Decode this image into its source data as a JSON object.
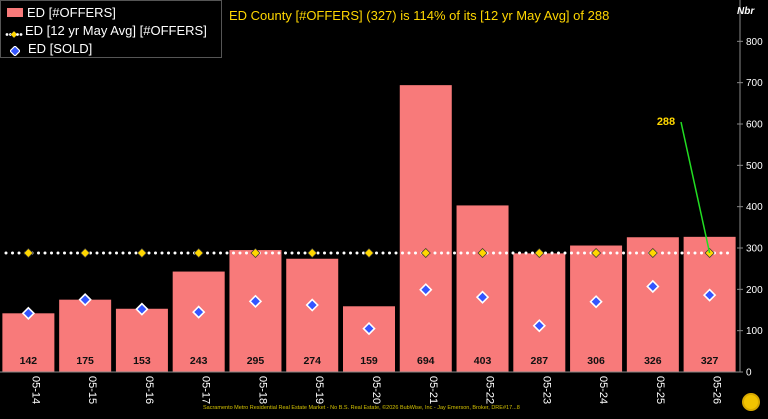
{
  "chart_data": {
    "type": "bar",
    "title": "ED County [#OFFERS] (327) is 114% of its [12 yr May Avg] of 288",
    "xlabel": "",
    "ylabel": "Nbr",
    "ylim": [
      0,
      900
    ],
    "yticks": [
      0,
      100,
      200,
      300,
      400,
      500,
      600,
      700,
      800
    ],
    "grid": false,
    "legend_position": "top-left",
    "categories": [
      "05-14",
      "05-15",
      "05-16",
      "05-17",
      "05-18",
      "05-19",
      "05-20",
      "05-21",
      "05-22",
      "05-23",
      "05-24",
      "05-25",
      "05-26"
    ],
    "series": [
      {
        "name": "ED [#OFFERS]",
        "kind": "bar",
        "color": "#f87a7a",
        "values": [
          142,
          175,
          153,
          243,
          295,
          274,
          159,
          694,
          403,
          287,
          306,
          326,
          327
        ]
      },
      {
        "name": "ED [12 yr May Avg] [#OFFERS]",
        "kind": "dotted-line",
        "color": "#ffd700",
        "values": [
          288,
          288,
          288,
          288,
          288,
          288,
          288,
          288,
          288,
          288,
          288,
          288,
          288
        ]
      },
      {
        "name": "ED [SOLD]",
        "kind": "marker",
        "color": "#3355ff",
        "values": [
          142,
          175,
          152,
          145,
          171,
          162,
          105,
          199,
          181,
          112,
          170,
          207,
          186
        ]
      }
    ],
    "bar_labels": [
      "142",
      "175",
      "153",
      "243",
      "295",
      "274",
      "159",
      "694",
      "403",
      "287",
      "306",
      "326",
      "327"
    ],
    "callout": {
      "label": "288",
      "category": "05-26",
      "value": 288
    }
  },
  "footer_text": "Sacramento Metro Residential Real Estate Market - No B.S. Real Estate, ©2026 BubWise, Inc - Jay Emerson, Broker, DRE#17...8",
  "colors": {
    "background": "#000000",
    "title": "#ffd700",
    "axis_text": "#ffffff",
    "callout_line": "#22dd22"
  }
}
